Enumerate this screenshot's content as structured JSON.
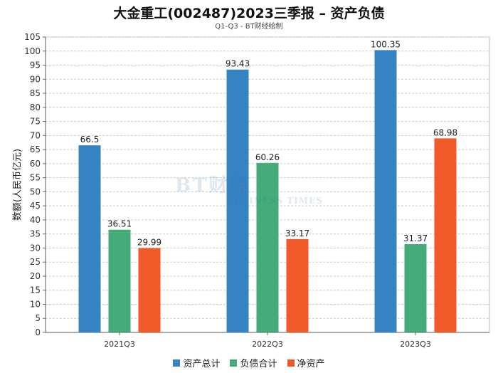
{
  "chart_data": {
    "type": "bar",
    "title": "大金重工(002487)2023三季报 – 资产负债",
    "subtitle": "Q1-Q3 - BT财经绘制",
    "ylabel": "数额(人民币亿元)",
    "xlabel": "",
    "categories": [
      "2021Q3",
      "2022Q3",
      "2023Q3"
    ],
    "ylim": [
      0,
      105
    ],
    "ytick_step": 5,
    "grid": true,
    "legend_position": "bottom",
    "series": [
      {
        "name": "资产总计",
        "color": "#3683c3",
        "values": [
          66.5,
          93.43,
          100.35
        ],
        "labels": [
          "66.5",
          "93.43",
          "100.35"
        ]
      },
      {
        "name": "负债合计",
        "color": "#45ab78",
        "values": [
          36.51,
          60.26,
          31.37
        ],
        "labels": [
          "36.51",
          "60.26",
          "31.37"
        ]
      },
      {
        "name": "净资产",
        "color": "#f05a28",
        "values": [
          29.99,
          33.17,
          68.98
        ],
        "labels": [
          "29.99",
          "33.17",
          "68.98"
        ]
      }
    ]
  },
  "watermark": {
    "main": "BT财经",
    "sub": "BUSINESS TIMES"
  }
}
